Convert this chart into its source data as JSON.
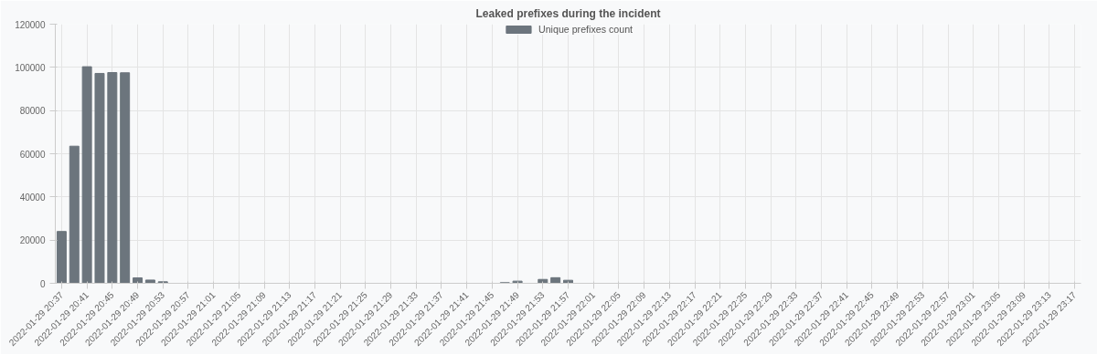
{
  "chart_data": {
    "type": "bar",
    "title": "Leaked prefixes during the incident",
    "categories": [
      "2022-01-29 20:37",
      null,
      "2022-01-29 20:41",
      null,
      "2022-01-29 20:45",
      null,
      "2022-01-29 20:49",
      null,
      "2022-01-29 20:53",
      null,
      "2022-01-29 20:57",
      null,
      "2022-01-29 21:01",
      null,
      "2022-01-29 21:05",
      null,
      "2022-01-29 21:09",
      null,
      "2022-01-29 21:13",
      null,
      "2022-01-29 21:17",
      null,
      "2022-01-29 21:21",
      null,
      "2022-01-29 21:25",
      null,
      "2022-01-29 21:29",
      null,
      "2022-01-29 21:33",
      null,
      "2022-01-29 21:37",
      null,
      "2022-01-29 21:41",
      null,
      "2022-01-29 21:45",
      null,
      "2022-01-29 21:49",
      null,
      "2022-01-29 21:53",
      null,
      "2022-01-29 21:57",
      null,
      "2022-01-29 22:01",
      null,
      "2022-01-29 22:05",
      null,
      "2022-01-29 22:09",
      null,
      "2022-01-29 22:13",
      null,
      "2022-01-29 22:17",
      null,
      "2022-01-29 22:21",
      null,
      "2022-01-29 22:25",
      null,
      "2022-01-29 22:29",
      null,
      "2022-01-29 22:33",
      null,
      "2022-01-29 22:37",
      null,
      "2022-01-29 22:41",
      null,
      "2022-01-29 22:45",
      null,
      "2022-01-29 22:49",
      null,
      "2022-01-29 22:53",
      null,
      "2022-01-29 22:57",
      null,
      "2022-01-29 23:01",
      null,
      "2022-01-29 23:05",
      null,
      "2022-01-29 23:09",
      null,
      "2022-01-29 23:13",
      null,
      "2022-01-29 23:17"
    ],
    "series": [
      {
        "name": "Unique prefixes count",
        "color": "#6c757d",
        "values": [
          24000,
          63500,
          100300,
          97200,
          97600,
          97500,
          2500,
          1500,
          700,
          0,
          0,
          0,
          0,
          0,
          0,
          0,
          0,
          0,
          0,
          0,
          0,
          0,
          0,
          0,
          0,
          0,
          0,
          0,
          0,
          0,
          0,
          0,
          0,
          0,
          0,
          300,
          1000,
          0,
          1800,
          2600,
          1400,
          0,
          0,
          0,
          0,
          0,
          0,
          0,
          0,
          0,
          0,
          0,
          0,
          0,
          0,
          0,
          0,
          0,
          0,
          0,
          0,
          0,
          0,
          0,
          0,
          0,
          0,
          0,
          0,
          0,
          0,
          0,
          0,
          0,
          0,
          0,
          0,
          0,
          0,
          0,
          0
        ]
      }
    ],
    "ylim": [
      0,
      120000
    ],
    "yticks": [
      0,
      20000,
      40000,
      60000,
      80000,
      100000,
      120000
    ],
    "grid": true,
    "legend": "top"
  }
}
